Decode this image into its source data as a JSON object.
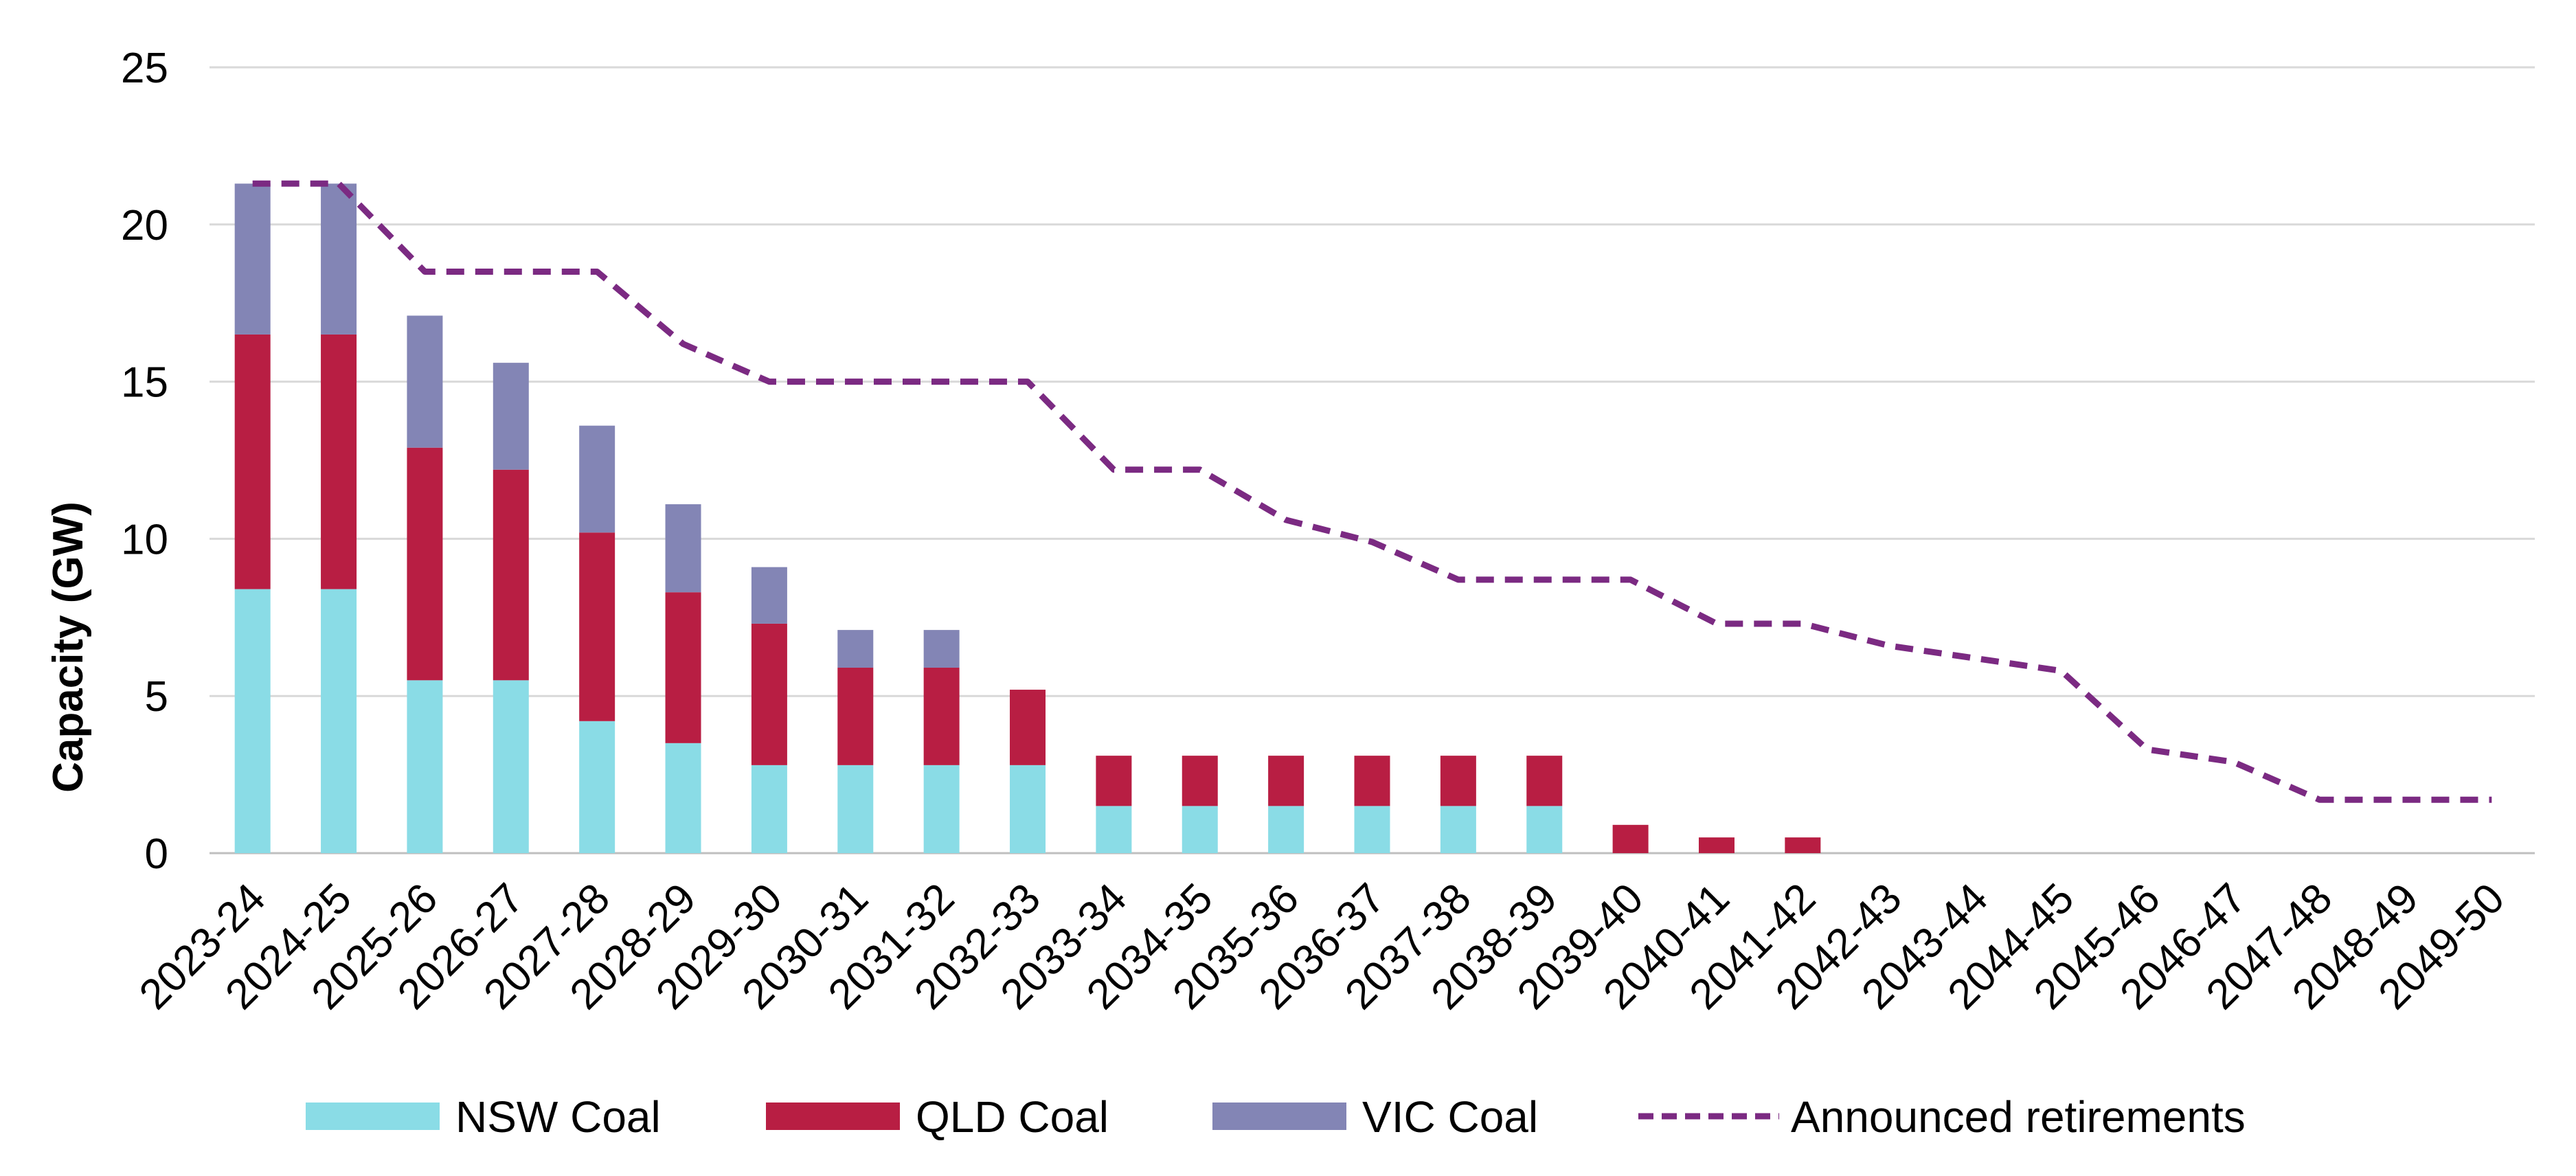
{
  "chart_data": {
    "type": "bar",
    "stacked": true,
    "title": "",
    "xlabel": "",
    "ylabel": "Capacity (GW)",
    "ylim": [
      0,
      25
    ],
    "yticks": [
      0,
      5,
      10,
      15,
      20,
      25
    ],
    "grid": true,
    "legend_position": "bottom",
    "categories": [
      "2023-24",
      "2024-25",
      "2025-26",
      "2026-27",
      "2027-28",
      "2028-29",
      "2029-30",
      "2030-31",
      "2031-32",
      "2032-33",
      "2033-34",
      "2034-35",
      "2035-36",
      "2036-37",
      "2037-38",
      "2038-39",
      "2039-40",
      "2040-41",
      "2041-42",
      "2042-43",
      "2043-44",
      "2044-45",
      "2045-46",
      "2046-47",
      "2047-48",
      "2048-49",
      "2049-50"
    ],
    "series": [
      {
        "name": "NSW Coal",
        "kind": "bar",
        "color": "#8adce6",
        "values": [
          8.4,
          8.4,
          5.5,
          5.5,
          4.2,
          3.5,
          2.8,
          2.8,
          2.8,
          2.8,
          1.5,
          1.5,
          1.5,
          1.5,
          1.5,
          1.5,
          0,
          0,
          0,
          0,
          0,
          0,
          0,
          0,
          0,
          0,
          0
        ]
      },
      {
        "name": "QLD Coal",
        "kind": "bar",
        "color": "#b81e43",
        "values": [
          8.1,
          8.1,
          7.4,
          6.7,
          6.0,
          4.8,
          4.5,
          3.1,
          3.1,
          2.4,
          1.6,
          1.6,
          1.6,
          1.6,
          1.6,
          1.6,
          0.9,
          0.5,
          0.5,
          0,
          0,
          0,
          0,
          0,
          0,
          0,
          0
        ]
      },
      {
        "name": "VIC Coal",
        "kind": "bar",
        "color": "#8385b5",
        "values": [
          4.8,
          4.8,
          4.2,
          3.4,
          3.4,
          2.8,
          1.8,
          1.2,
          1.2,
          0,
          0,
          0,
          0,
          0,
          0,
          0,
          0,
          0,
          0,
          0,
          0,
          0,
          0,
          0,
          0,
          0,
          0
        ]
      },
      {
        "name": "Announced retirements",
        "kind": "line",
        "style": "dashed",
        "color": "#7b2a82",
        "values": [
          21.3,
          21.3,
          18.5,
          18.5,
          18.5,
          16.2,
          15.0,
          15.0,
          15.0,
          15.0,
          12.2,
          12.2,
          10.6,
          9.9,
          8.7,
          8.7,
          8.7,
          7.3,
          7.3,
          6.6,
          6.2,
          5.8,
          3.3,
          2.9,
          1.7,
          1.7,
          1.7
        ]
      }
    ]
  }
}
